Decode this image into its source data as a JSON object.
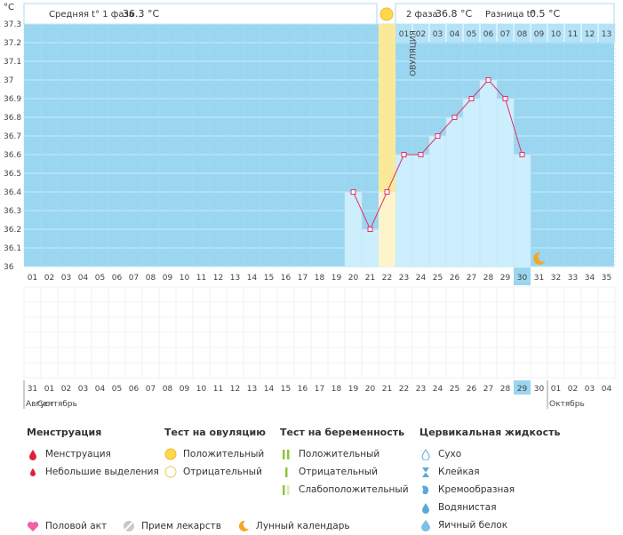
{
  "header": {
    "phase1_label": "Средняя t° 1 фаза",
    "phase1_value": "36.3 °C",
    "phase2_label": "2 фаза",
    "phase2_value": "36.8 °C",
    "diff_label": "Разница t°",
    "diff_value": "0.5 °C",
    "unit": "°C"
  },
  "ovulation_label": "ОВУЛЯЦИЯ",
  "chart_data": {
    "type": "bar",
    "ylabel": "°C",
    "ylim": [
      36.0,
      37.3
    ],
    "yticks": [
      "37.3",
      "37.2",
      "37.1",
      "37",
      "36.9",
      "36.8",
      "36.7",
      "36.6",
      "36.5",
      "36.4",
      "36.3",
      "36.2",
      "36.1",
      "36"
    ],
    "cycle_days": [
      "01",
      "02",
      "03",
      "04",
      "05",
      "06",
      "07",
      "08",
      "09",
      "10",
      "11",
      "12",
      "13",
      "14",
      "15",
      "16",
      "17",
      "18",
      "19",
      "20",
      "21",
      "22",
      "23",
      "24",
      "25",
      "26",
      "27",
      "28",
      "29",
      "30",
      "31",
      "32",
      "33",
      "34",
      "35"
    ],
    "calendar_days": [
      "31",
      "01",
      "02",
      "03",
      "04",
      "05",
      "06",
      "07",
      "08",
      "09",
      "10",
      "11",
      "12",
      "13",
      "14",
      "15",
      "16",
      "17",
      "18",
      "19",
      "20",
      "21",
      "22",
      "23",
      "24",
      "25",
      "26",
      "27",
      "28",
      "29",
      "30",
      "01",
      "02",
      "03",
      "04"
    ],
    "red_calendar_days": [
      0,
      1,
      7,
      8,
      13,
      14,
      21,
      22,
      28
    ],
    "phase2_day_labels": [
      "01",
      "02",
      "03",
      "04",
      "05",
      "06",
      "07",
      "08",
      "09",
      "10",
      "11",
      "12",
      "13"
    ],
    "months": [
      "Август",
      "Сентябрь",
      "Октябрь"
    ],
    "series": [
      {
        "days": [
          20,
          21,
          22,
          23,
          24,
          25,
          26,
          27,
          28,
          29,
          30
        ],
        "values": [
          36.4,
          36.2,
          36.4,
          36.6,
          36.6,
          36.7,
          36.8,
          36.9,
          37.0,
          36.9,
          36.6
        ]
      }
    ],
    "ovulation_day": 22,
    "today_cycle_day": 30,
    "today_calendar_day": "29",
    "moon_day": 31,
    "colors": {
      "background": "#9bd6f0",
      "bars": "#cdeefc",
      "line": "#e0306a",
      "ovulation": "#fbe99a",
      "today": "#9bd6f0",
      "red_day": "#e0203a"
    }
  },
  "legend": {
    "menstruation": {
      "title": "Менструация",
      "items": [
        "Менструация",
        "Небольшие выделения"
      ]
    },
    "ovulation_test": {
      "title": "Тест на овуляцию",
      "items": [
        "Положительный",
        "Отрицательный"
      ]
    },
    "pregnancy_test": {
      "title": "Тест на беременность",
      "items": [
        "Положительный",
        "Отрицательный",
        "Слабоположительный"
      ]
    },
    "cervical": {
      "title": "Цервикальная жидкость",
      "items": [
        "Сухо",
        "Клейкая",
        "Кремообразная",
        "Водянистая",
        "Яичный белок"
      ]
    },
    "bottom": [
      "Половой акт",
      "Прием лекарств",
      "Лунный календарь"
    ],
    "icons": {
      "menstruation": "drop-icon",
      "spotting": "small-drop-icon",
      "ovulation_positive": "filled-circle-icon",
      "ovulation_negative": "empty-circle-icon",
      "preg_positive": "double-bar-icon",
      "preg_negative": "single-bar-icon",
      "preg_weak": "faint-double-bar-icon",
      "dry": "outline-drop-icon",
      "sticky": "hourglass-icon",
      "creamy": "cream-drop-icon",
      "watery": "water-drop-icon",
      "eggwhite": "eggwhite-drop-icon",
      "intercourse": "heart-icon",
      "meds": "pill-icon",
      "moon": "moon-icon"
    }
  }
}
